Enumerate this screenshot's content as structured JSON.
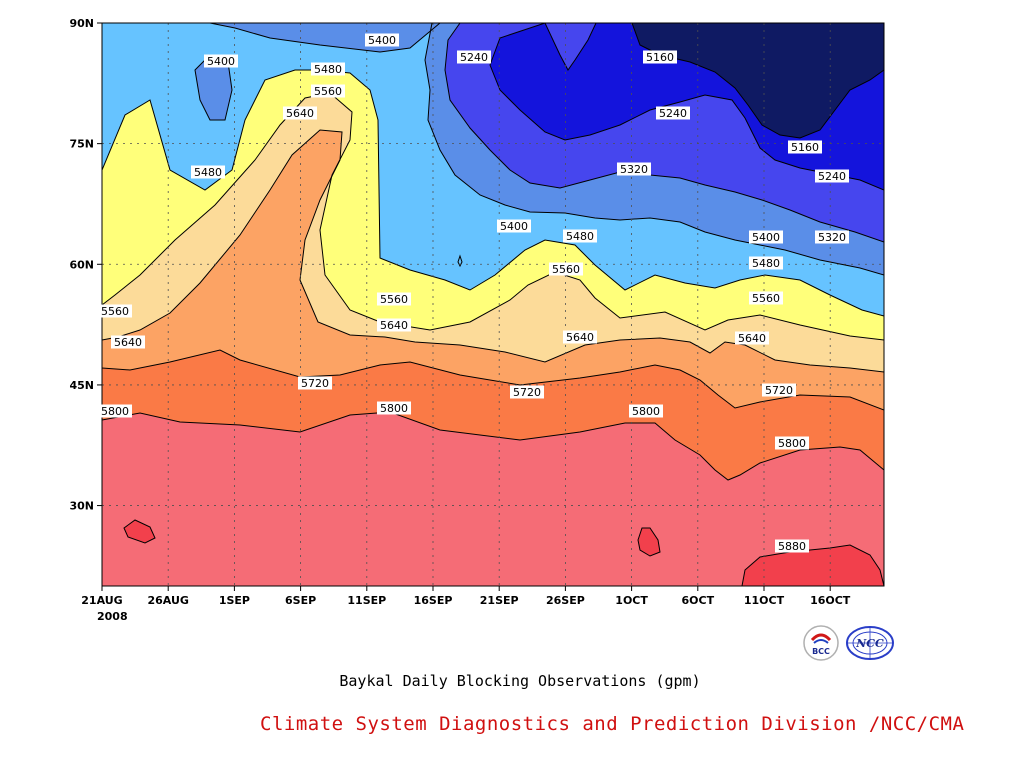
{
  "chart_data": {
    "type": "contour",
    "title": "Baykal Daily Blocking Observations (gpm)",
    "credit": "Climate System Diagnostics and Prediction Division /NCC/CMA",
    "x_ticks": [
      "21AUG",
      "26AUG",
      "1SEP",
      "6SEP",
      "11SEP",
      "16SEP",
      "21SEP",
      "26SEP",
      "1OCT",
      "6OCT",
      "11OCT",
      "16OCT"
    ],
    "x_year": "2008",
    "y_ticks": [
      "30N",
      "45N",
      "60N",
      "75N",
      "90N"
    ],
    "y_values": [
      30,
      45,
      60,
      75,
      90
    ],
    "ylim": [
      20,
      90
    ],
    "grid": true,
    "levels": [
      5160,
      5240,
      5320,
      5400,
      5480,
      5560,
      5640,
      5720,
      5800,
      5880
    ],
    "colors": {
      "lt5160": "#0f1a63",
      "5160": "#1414dc",
      "5240": "#4646ee",
      "5320": "#5a8ee8",
      "5400": "#66c3ff",
      "5480": "#ffff7a",
      "5560": "#fcdb99",
      "5640": "#fca364",
      "5720": "#fa7a46",
      "5800": "#f56c76",
      "5880": "#f2404c"
    },
    "contour_labels": [
      "5400",
      "5400",
      "5240",
      "5160",
      "5480",
      "5560",
      "5640",
      "5240",
      "5480",
      "5160",
      "5240",
      "5320",
      "5400",
      "5480",
      "5400",
      "5320",
      "5560",
      "5480",
      "5560",
      "5560",
      "5560",
      "5640",
      "5640",
      "5640",
      "5640",
      "5720",
      "5720",
      "5720",
      "5800",
      "5800",
      "5800",
      "5800",
      "5880"
    ]
  },
  "logos": {
    "bcc": "BCC",
    "ncc": "NCC"
  }
}
